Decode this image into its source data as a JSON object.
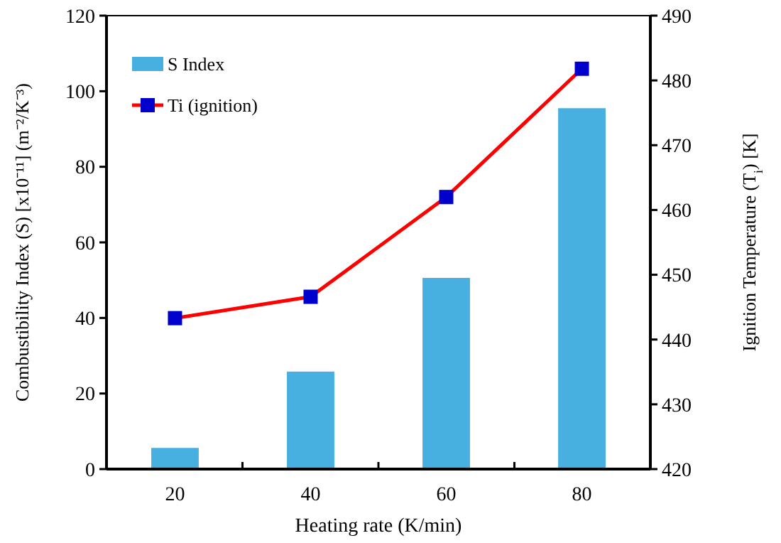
{
  "chart_data": {
    "type": "bar",
    "xlabel": "Heating rate (K/min)",
    "ylabel": "Combustibility Index (S) [x10⁻¹¹] (m⁻²/K⁻³)",
    "y2label": "Ignition Temperature (T$_{i}$) [K]",
    "categories": [
      "20",
      "40",
      "60",
      "80"
    ],
    "series": [
      {
        "name": "S Index",
        "color": "#47b0e0",
        "values": [
          5.6,
          25.8,
          50.6,
          95.5
        ]
      },
      {
        "name": "Ti (ignition)",
        "type": "line",
        "axis": "y2",
        "color": "#ff0000",
        "marker": "square",
        "values": [
          443.3,
          446.6,
          462.0,
          481.8
        ]
      }
    ],
    "ylim": [
      0,
      120
    ],
    "yticks": [
      0,
      20,
      40,
      60,
      80,
      100,
      120
    ],
    "y2lim": [
      420,
      490
    ],
    "y2ticks": [
      420,
      430,
      440,
      450,
      460,
      470,
      480,
      490
    ],
    "legend": "top left",
    "grid": false
  }
}
